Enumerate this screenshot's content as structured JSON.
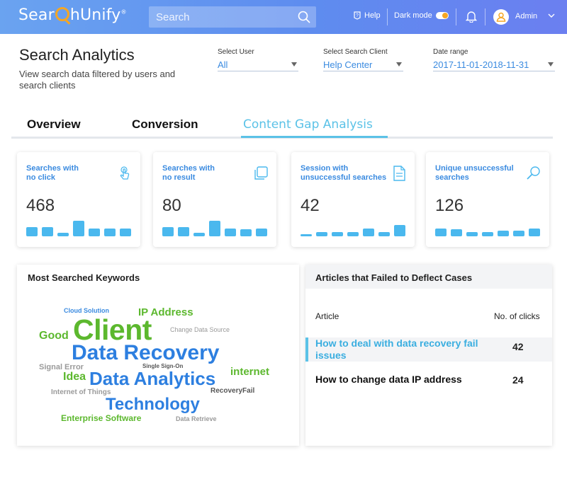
{
  "header": {
    "logo": {
      "part1": "Sear",
      "part2": "hUnify",
      "mark": "®"
    },
    "search_placeholder": "Search",
    "help": "Help",
    "dark_mode": "Dark mode",
    "user": "Admin",
    "colors": {
      "gradient_start": "#6aa3f0",
      "gradient_end": "#6b7ff0",
      "accent": "#f5a623"
    }
  },
  "page": {
    "title": "Search Analytics",
    "subtitle": "View search data filtered by users and search clients"
  },
  "filters": [
    {
      "label": "Select User",
      "value": "All"
    },
    {
      "label": "Select Search Client",
      "value": "Help Center"
    },
    {
      "label": "Date range",
      "value": "2017-11-01-2018-11-31"
    }
  ],
  "tabs": [
    {
      "label": "Overview",
      "active": false
    },
    {
      "label": "Conversion",
      "active": false
    },
    {
      "label": "Content Gap Analysis",
      "active": true
    }
  ],
  "cards": [
    {
      "title_line1": "Searches with",
      "title_line2": "no click",
      "value": "468",
      "icon": "touch-icon",
      "bars": [
        0.55,
        0.55,
        0.2,
        0.9,
        0.45,
        0.45,
        0.45
      ]
    },
    {
      "title_line1": "Searches with",
      "title_line2": "no result",
      "value": "80",
      "icon": "copy-icon",
      "bars": [
        0.55,
        0.55,
        0.2,
        0.9,
        0.45,
        0.4,
        0.45
      ]
    },
    {
      "title_line1": "Session with",
      "title_line2": "unsuccessful searches",
      "value": "42",
      "icon": "document-icon",
      "bars": [
        0.1,
        0.25,
        0.25,
        0.25,
        0.45,
        0.25,
        0.65
      ]
    },
    {
      "title_line1": "Unique unsuccessful",
      "title_line2": "searches",
      "value": "126",
      "icon": "search-icon",
      "bars": [
        0.45,
        0.4,
        0.25,
        0.25,
        0.35,
        0.35,
        0.45
      ]
    }
  ],
  "keywords_panel": {
    "title": "Most Searched Keywords",
    "words": [
      {
        "text": "Cloud Solution",
        "color": "#3b8be0"
      },
      {
        "text": "IP Address",
        "color": "#5cb82e"
      },
      {
        "text": "Good",
        "color": "#5cb82e"
      },
      {
        "text": "Client",
        "color": "#5cb82e"
      },
      {
        "text": "Change Data Source",
        "color": "#9a9a9a"
      },
      {
        "text": "Data Recovery",
        "color": "#2d7fe0"
      },
      {
        "text": "Signal Error",
        "color": "#9a9a9a"
      },
      {
        "text": "Single Sign-On",
        "color": "#555555"
      },
      {
        "text": "Idea",
        "color": "#5cb82e"
      },
      {
        "text": "Data Analytics",
        "color": "#2d7fe0"
      },
      {
        "text": "internet",
        "color": "#5cb82e"
      },
      {
        "text": "Internet of Things",
        "color": "#9a9a9a"
      },
      {
        "text": "RecoveryFail",
        "color": "#555555"
      },
      {
        "text": "Technology",
        "color": "#2d7fe0"
      },
      {
        "text": "Enterprise Software",
        "color": "#5cb82e"
      },
      {
        "text": "Data Retrieve",
        "color": "#9a9a9a"
      }
    ]
  },
  "articles_panel": {
    "title": "Articles that Failed to Deflect Cases",
    "col_article": "Article",
    "col_clicks": "No. of clicks",
    "rows": [
      {
        "title": "How to deal with data recovery fail issues",
        "clicks": "42",
        "selected": true
      },
      {
        "title": "How to change data IP address",
        "clicks": "24",
        "selected": false
      }
    ]
  }
}
